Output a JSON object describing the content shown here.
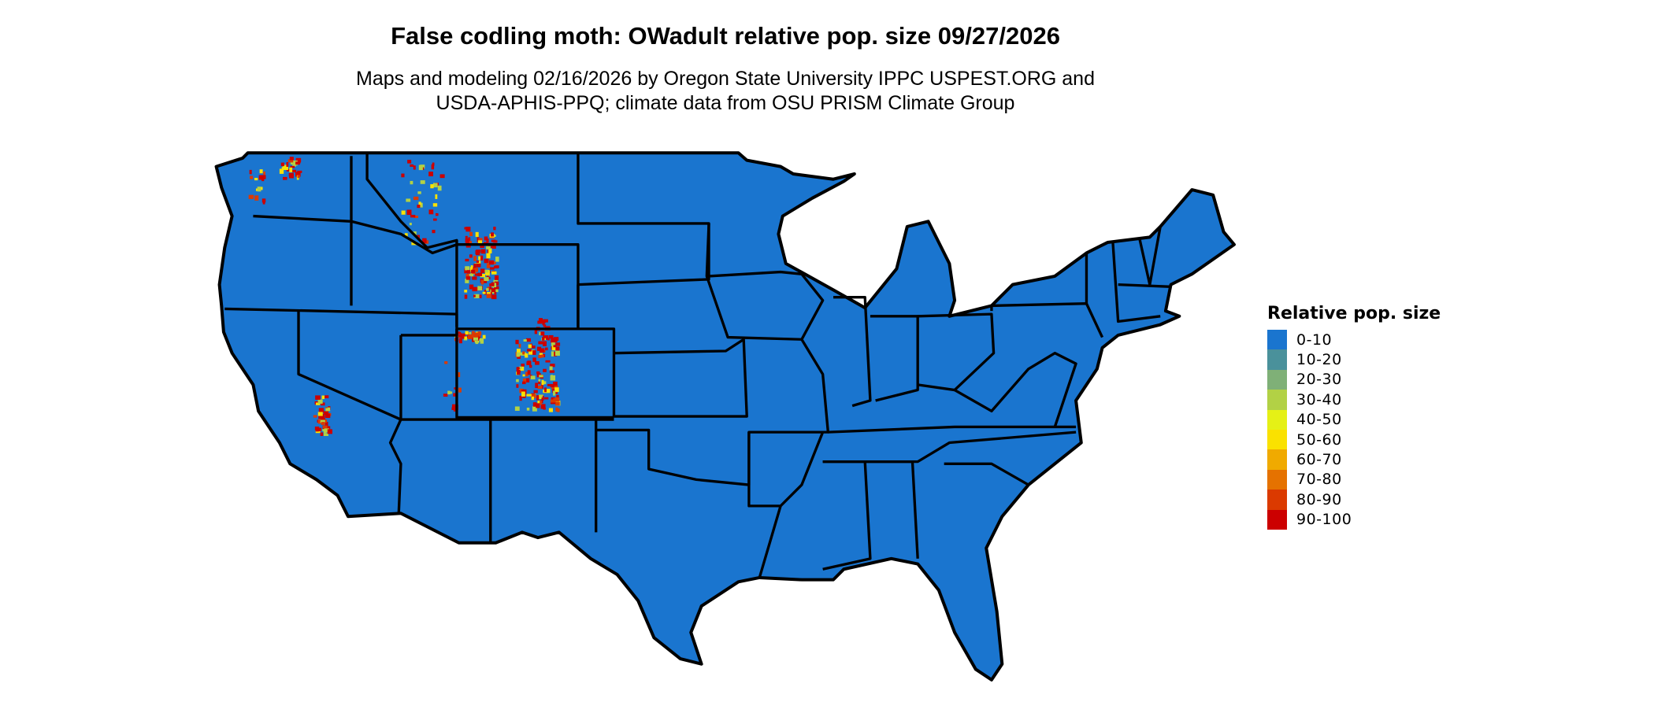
{
  "title": "False codling moth: OWadult relative pop. size 09/27/2026",
  "subtitle_lines": [
    "Maps and modeling 02/16/2026 by Oregon State University IPPC USPEST.ORG and",
    "USDA-APHIS-PPQ; climate data from OSU PRISM Climate Group"
  ],
  "map": {
    "region": "Contiguous United States",
    "base_color": "#1a75cf",
    "border_color": "#000000"
  },
  "legend": {
    "title": "Relative pop. size",
    "items": [
      {
        "label": "0-10",
        "color": "#1a75cf"
      },
      {
        "label": "10-20",
        "color": "#4a919b"
      },
      {
        "label": "20-30",
        "color": "#7fb077"
      },
      {
        "label": "30-40",
        "color": "#b2d145"
      },
      {
        "label": "40-50",
        "color": "#e5f016"
      },
      {
        "label": "50-60",
        "color": "#fae100"
      },
      {
        "label": "60-70",
        "color": "#f0aa00"
      },
      {
        "label": "70-80",
        "color": "#e57200"
      },
      {
        "label": "80-90",
        "color": "#db3a00"
      },
      {
        "label": "90-100",
        "color": "#cc0000"
      }
    ]
  }
}
